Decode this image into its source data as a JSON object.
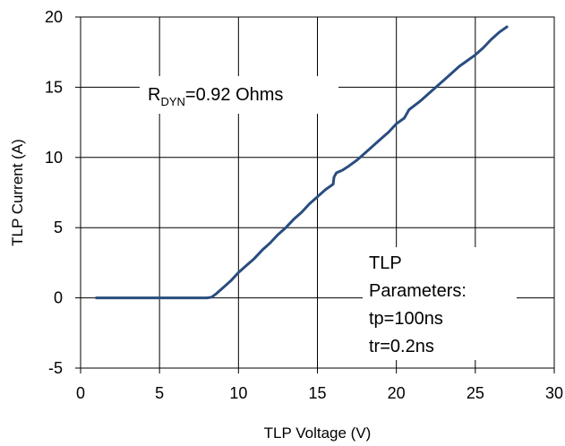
{
  "chart_data": {
    "type": "line",
    "xlabel": "TLP Voltage (V)",
    "ylabel": "TLP Current (A)",
    "xlim": [
      0,
      30
    ],
    "ylim": [
      -5,
      20
    ],
    "xticks": [
      0,
      5,
      10,
      15,
      20,
      25,
      30
    ],
    "yticks": [
      -5,
      0,
      5,
      10,
      15,
      20
    ],
    "grid": true,
    "line_color": "#2a4d7f",
    "series": [
      {
        "x": [
          1.0,
          3.0,
          5.0,
          7.0,
          8.0,
          8.3,
          8.6,
          9.0,
          9.5,
          10.0,
          10.5,
          11.0,
          11.5,
          12.0,
          12.5,
          13.0,
          13.5,
          14.0,
          14.5,
          15.0,
          15.5,
          16.0,
          16.05,
          16.2,
          16.6,
          17.0,
          17.5,
          18.0,
          18.5,
          19.0,
          19.5,
          20.0,
          20.5,
          20.8,
          21.5,
          22.0,
          22.5,
          23.0,
          23.5,
          24.0,
          24.5,
          25.0,
          25.5,
          26.0,
          26.5,
          27.0
        ],
        "y": [
          0,
          0,
          0,
          0,
          0,
          0.05,
          0.3,
          0.7,
          1.2,
          1.8,
          2.3,
          2.8,
          3.4,
          3.9,
          4.5,
          5.0,
          5.6,
          6.1,
          6.7,
          7.2,
          7.7,
          8.1,
          8.6,
          8.9,
          9.1,
          9.4,
          9.8,
          10.3,
          10.8,
          11.3,
          11.8,
          12.4,
          12.8,
          13.4,
          14.0,
          14.5,
          15.0,
          15.5,
          16.0,
          16.5,
          16.9,
          17.3,
          17.8,
          18.4,
          18.9,
          19.3
        ]
      }
    ],
    "annotations": {
      "rdyn_main": "R",
      "rdyn_sub": "DYN",
      "rdyn_value": "=0.92  Ohms",
      "params": [
        "TLP",
        "Parameters:",
        "tp=100ns",
        "tr=0.2ns"
      ]
    }
  }
}
